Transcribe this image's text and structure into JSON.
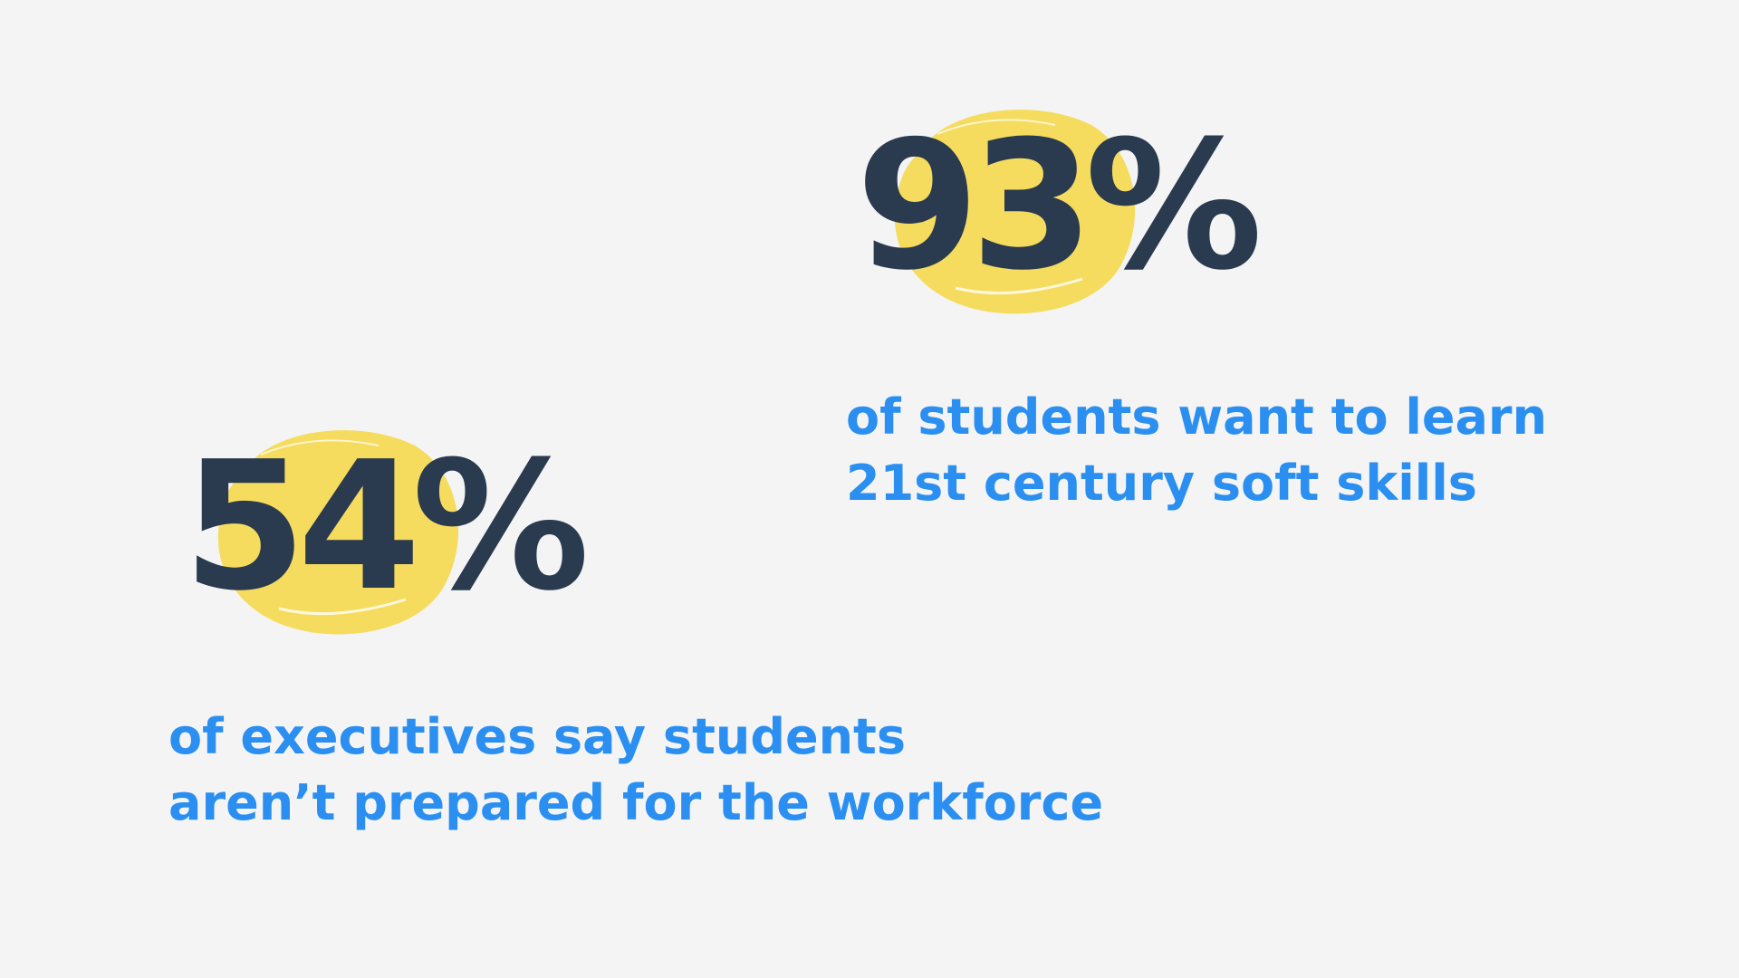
{
  "stats": [
    {
      "figure": "93%",
      "lines": [
        "of students want to learn",
        "21st century soft skills"
      ]
    },
    {
      "figure": "54%",
      "lines": [
        "of executives say students",
        "aren’t prepared for the workforce"
      ]
    }
  ]
}
